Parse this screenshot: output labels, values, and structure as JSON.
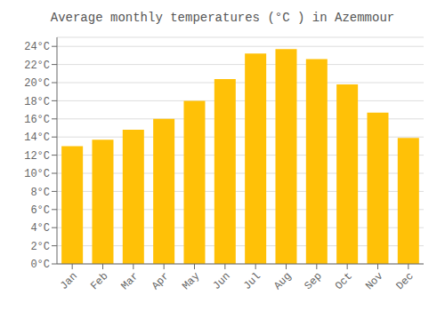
{
  "chart_data": {
    "type": "bar",
    "title": "Average monthly temperatures (°C ) in Azemmour",
    "categories": [
      "Jan",
      "Feb",
      "Mar",
      "Apr",
      "May",
      "Jun",
      "Jul",
      "Aug",
      "Sep",
      "Oct",
      "Nov",
      "Dec"
    ],
    "values": [
      13.0,
      13.7,
      14.8,
      16.0,
      18.0,
      20.4,
      23.2,
      23.7,
      22.6,
      19.8,
      16.7,
      13.9
    ],
    "color": "#FFC107",
    "ylim": [
      0,
      25
    ],
    "yticks": [
      {
        "value": 0,
        "label": "0°C"
      },
      {
        "value": 2,
        "label": "2°C"
      },
      {
        "value": 4,
        "label": "4°C"
      },
      {
        "value": 6,
        "label": "6°C"
      },
      {
        "value": 8,
        "label": "8°C"
      },
      {
        "value": 10,
        "label": "10°C"
      },
      {
        "value": 12,
        "label": "12°C"
      },
      {
        "value": 14,
        "label": "14°C"
      },
      {
        "value": 16,
        "label": "16°C"
      },
      {
        "value": 18,
        "label": "18°C"
      },
      {
        "value": 20,
        "label": "20°C"
      },
      {
        "value": 22,
        "label": "22°C"
      },
      {
        "value": 24,
        "label": "24°C"
      }
    ],
    "grid": true
  }
}
